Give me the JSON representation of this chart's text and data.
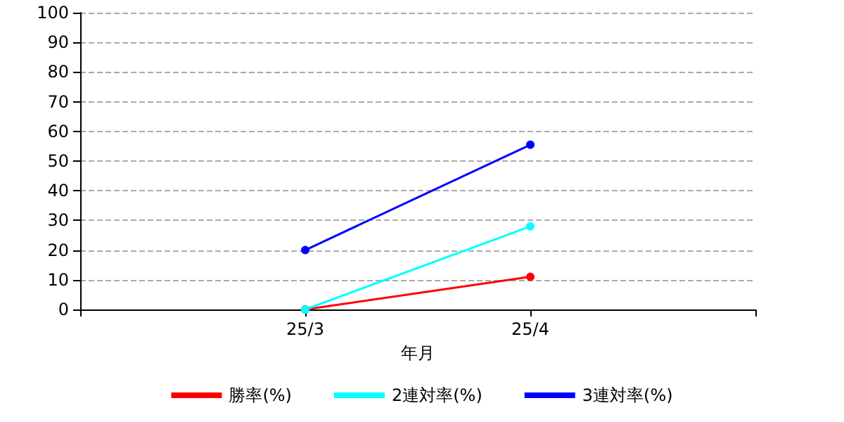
{
  "chart_data": {
    "type": "line",
    "xlabel": "年月",
    "categories": [
      null,
      "25/3",
      "25/4",
      null
    ],
    "series": [
      {
        "name": "勝率(%)",
        "color": "#ff0000",
        "values": [
          null,
          0,
          11,
          null
        ]
      },
      {
        "name": "2連対率(%)",
        "color": "#00ffff",
        "values": [
          null,
          0,
          28,
          null
        ]
      },
      {
        "name": "3連対率(%)",
        "color": "#0000ff",
        "values": [
          null,
          20,
          55.5,
          null
        ]
      }
    ],
    "ylim": [
      0,
      100
    ],
    "yticks": [
      0,
      10,
      20,
      30,
      40,
      50,
      60,
      70,
      80,
      90,
      100
    ],
    "grid": "y",
    "legend": "bottom",
    "marker": "circle",
    "line_style": "solid"
  }
}
